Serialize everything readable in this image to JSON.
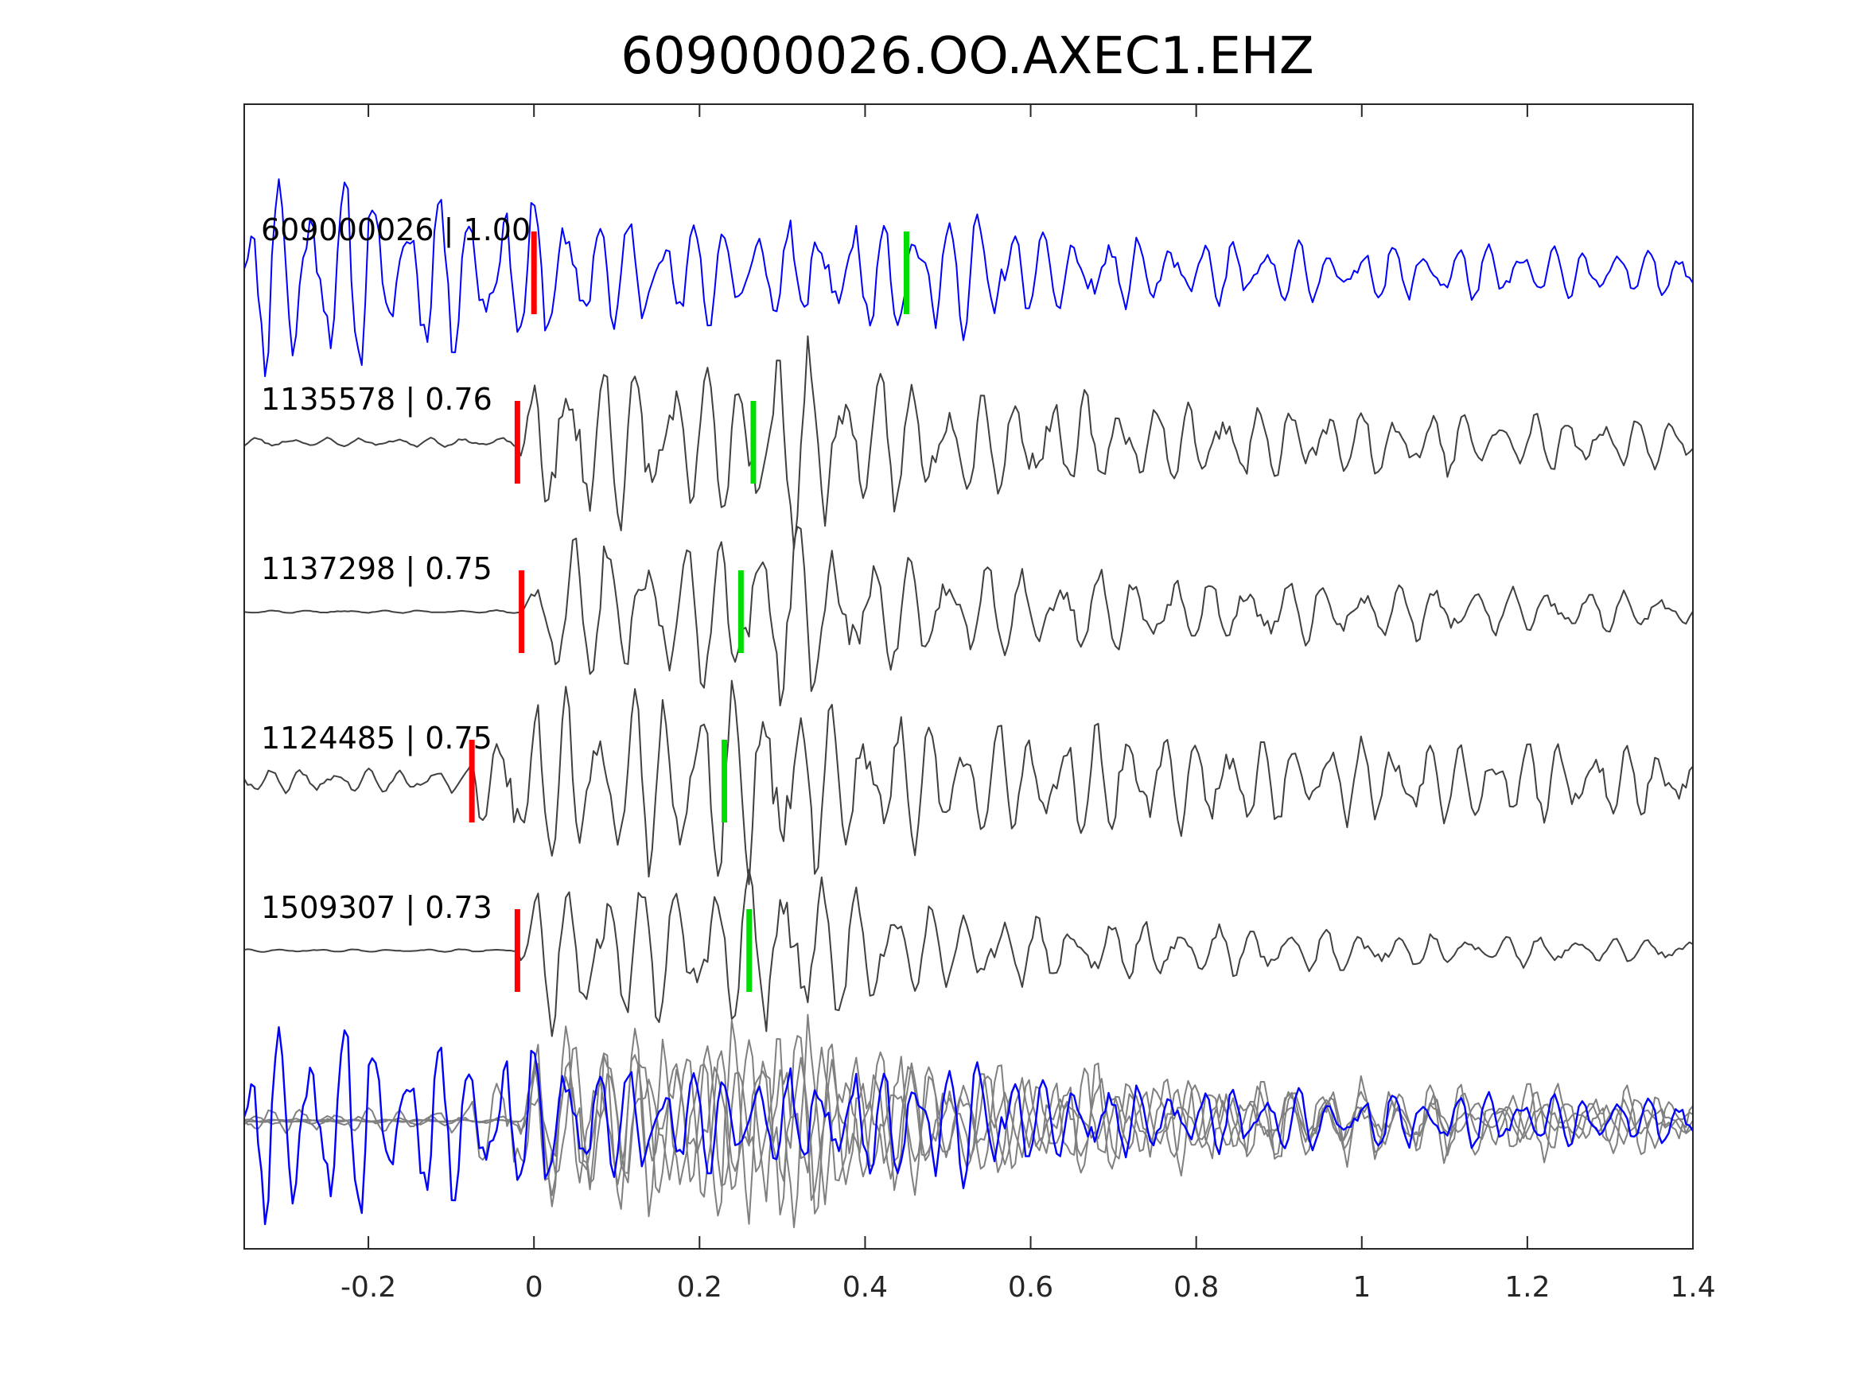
{
  "chart_data": {
    "type": "line",
    "title": "609000026.OO.AXEC1.EHZ",
    "xlabel": "",
    "ylabel": "",
    "xlim": [
      -0.35,
      1.4
    ],
    "x_ticks": [
      -0.2,
      0,
      0.2,
      0.4,
      0.6,
      0.8,
      1,
      1.2,
      1.4
    ],
    "x_tick_labels": [
      "-0.2",
      "0",
      "0.2",
      "0.4",
      "0.6",
      "0.8",
      "1",
      "1.2",
      "1.4"
    ],
    "grid": false,
    "legend": "none",
    "colors": {
      "template": "#0000ff",
      "match": "#404040",
      "stack_match": "#808080",
      "p_pick": "#ff0000",
      "s_pick": "#00dd00",
      "axes": "#262626"
    },
    "traces": [
      {
        "name": "609000026",
        "correlation": "1.00",
        "label": "609000026 | 1.00",
        "role": "template",
        "p_pick": 0.0,
        "s_pick": 0.45,
        "onset": -0.35,
        "noise": 0.22,
        "peak": 1.0,
        "decay": 1.8,
        "freq": 26,
        "seed": 11
      },
      {
        "name": "1135578",
        "correlation": "0.76",
        "label": "1135578 | 0.76",
        "role": "match",
        "p_pick": -0.02,
        "s_pick": 0.265,
        "onset": -0.02,
        "noise": 0.05,
        "peak": 0.9,
        "decay": 1.0,
        "freq": 24,
        "seed": 23
      },
      {
        "name": "1137298",
        "correlation": "0.75",
        "label": "1137298 | 0.75",
        "role": "match",
        "p_pick": -0.015,
        "s_pick": 0.25,
        "onset": -0.015,
        "noise": 0.015,
        "peak": 0.9,
        "decay": 1.1,
        "freq": 22,
        "seed": 37
      },
      {
        "name": "1124485",
        "correlation": "0.75",
        "label": "1124485 | 0.75",
        "role": "match",
        "p_pick": -0.075,
        "s_pick": 0.23,
        "onset": -0.08,
        "noise": 0.13,
        "peak": 0.9,
        "decay": 0.9,
        "freq": 25,
        "seed": 41
      },
      {
        "name": "1509307",
        "correlation": "0.73",
        "label": "1509307 | 0.73",
        "role": "match",
        "p_pick": -0.02,
        "s_pick": 0.26,
        "onset": -0.02,
        "noise": 0.015,
        "peak": 0.9,
        "decay": 1.5,
        "freq": 23,
        "seed": 53
      }
    ]
  }
}
